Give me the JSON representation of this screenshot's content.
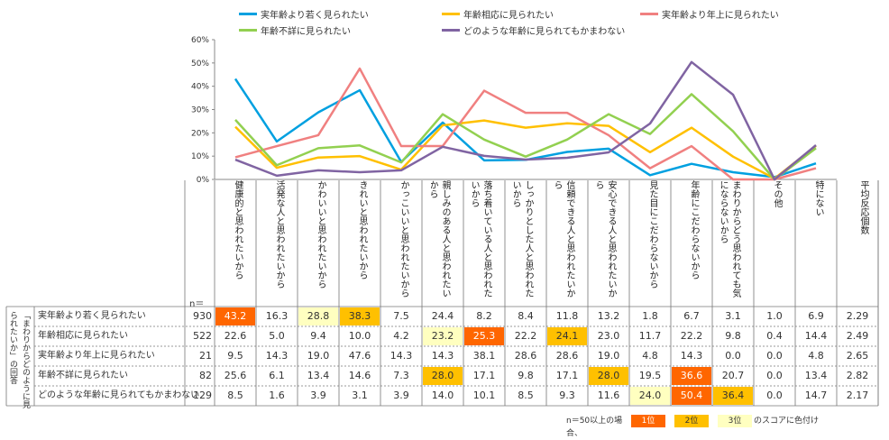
{
  "legend": [
    {
      "name": "実年齢より若く見られたい",
      "color": "#00a0e0"
    },
    {
      "name": "年齢相応に見られたい",
      "color": "#ffc000"
    },
    {
      "name": "実年齢より年上に見られたい",
      "color": "#f08080"
    },
    {
      "name": "年齢不詳に見られたい",
      "color": "#92d050"
    },
    {
      "name": "どのような年齢に見られてもかまわない",
      "color": "#8064a2"
    }
  ],
  "chart_data": {
    "type": "line",
    "ylim": [
      0,
      60
    ],
    "yticks": [
      "0%",
      "10%",
      "20%",
      "30%",
      "40%",
      "50%",
      "60%"
    ],
    "categories": [
      "健康的と思われたいから",
      "活発な人と思われたいから",
      "かわいいと思われたいから",
      "きれいと思われたいから",
      "かっこいいと思われたいから",
      "親しみのある人と思われたいから",
      "落ち着いている人と思われたいから",
      "しっかりとした人と思われたいから",
      "信頼できる人と思われたいから",
      "安心できる人と思われたいから",
      "見た目にこだわらないから",
      "年齢にこだわらないから",
      "まわりからどう思われても気にならないから",
      "その他",
      "特にない"
    ],
    "series": [
      {
        "name": "実年齢より若く見られたい",
        "values": [
          43.2,
          16.3,
          28.8,
          38.3,
          7.5,
          24.4,
          8.2,
          8.4,
          11.8,
          13.2,
          1.8,
          6.7,
          3.1,
          1.0,
          6.9
        ]
      },
      {
        "name": "年齢相応に見られたい",
        "values": [
          22.6,
          5.0,
          9.4,
          10.0,
          4.2,
          23.2,
          25.3,
          22.2,
          24.1,
          23.0,
          11.7,
          22.2,
          9.8,
          0.4,
          14.4
        ]
      },
      {
        "name": "実年齢より年上に見られたい",
        "values": [
          9.5,
          14.3,
          19.0,
          47.6,
          14.3,
          14.3,
          38.1,
          28.6,
          28.6,
          19.0,
          4.8,
          14.3,
          0.0,
          0.0,
          4.8
        ]
      },
      {
        "name": "年齢不詳に見られたい",
        "values": [
          25.6,
          6.1,
          13.4,
          14.6,
          7.3,
          28.0,
          17.1,
          9.8,
          17.1,
          28.0,
          19.5,
          36.6,
          20.7,
          0.0,
          13.4
        ]
      },
      {
        "name": "どのような年齢に見られてもかまわない",
        "values": [
          8.5,
          1.6,
          3.9,
          3.1,
          3.9,
          14.0,
          10.1,
          8.5,
          9.3,
          11.6,
          24.0,
          50.4,
          36.4,
          0.0,
          14.7
        ]
      }
    ]
  },
  "table": {
    "n_label": "n＝",
    "avg_header": "平均反応個数",
    "side_label": "「まわりからどのように見られたいか」の回答",
    "rows": [
      {
        "label": "実年齢より若く見られたい",
        "n": "930",
        "values": [
          "43.2",
          "16.3",
          "28.8",
          "38.3",
          "7.5",
          "24.4",
          "8.2",
          "8.4",
          "11.8",
          "13.2",
          "1.8",
          "6.7",
          "3.1",
          "1.0",
          "6.9"
        ],
        "avg": "2.29",
        "ranks": [
          1,
          0,
          3,
          2,
          0,
          0,
          0,
          0,
          0,
          0,
          0,
          0,
          0,
          0,
          0
        ]
      },
      {
        "label": "年齢相応に見られたい",
        "n": "522",
        "values": [
          "22.6",
          "5.0",
          "9.4",
          "10.0",
          "4.2",
          "23.2",
          "25.3",
          "22.2",
          "24.1",
          "23.0",
          "11.7",
          "22.2",
          "9.8",
          "0.4",
          "14.4"
        ],
        "avg": "2.49",
        "ranks": [
          0,
          0,
          0,
          0,
          0,
          3,
          1,
          0,
          2,
          0,
          0,
          0,
          0,
          0,
          0
        ]
      },
      {
        "label": "実年齢より年上に見られたい",
        "n": "21",
        "values": [
          "9.5",
          "14.3",
          "19.0",
          "47.6",
          "14.3",
          "14.3",
          "38.1",
          "28.6",
          "28.6",
          "19.0",
          "4.8",
          "14.3",
          "0.0",
          "0.0",
          "4.8"
        ],
        "avg": "2.65",
        "ranks": [
          0,
          0,
          0,
          0,
          0,
          0,
          0,
          0,
          0,
          0,
          0,
          0,
          0,
          0,
          0
        ]
      },
      {
        "label": "年齢不詳に見られたい",
        "n": "82",
        "values": [
          "25.6",
          "6.1",
          "13.4",
          "14.6",
          "7.3",
          "28.0",
          "17.1",
          "9.8",
          "17.1",
          "28.0",
          "19.5",
          "36.6",
          "20.7",
          "0.0",
          "13.4"
        ],
        "avg": "2.82",
        "ranks": [
          0,
          0,
          0,
          0,
          0,
          2,
          0,
          0,
          0,
          2,
          0,
          1,
          0,
          0,
          0
        ]
      },
      {
        "label": "どのような年齢に見られてもかまわない",
        "n": "129",
        "values": [
          "8.5",
          "1.6",
          "3.9",
          "3.1",
          "3.9",
          "14.0",
          "10.1",
          "8.5",
          "9.3",
          "11.6",
          "24.0",
          "50.4",
          "36.4",
          "0.0",
          "14.7"
        ],
        "avg": "2.17",
        "ranks": [
          0,
          0,
          0,
          0,
          0,
          0,
          0,
          0,
          0,
          0,
          3,
          1,
          2,
          0,
          0
        ]
      }
    ]
  },
  "rank_colors": {
    "1": "#ff6600",
    "2": "#ffc000",
    "3": "#ffffc0"
  },
  "footnote": {
    "prefix": "n＝50以上の場合、",
    "rank1": "1位",
    "rank2": "2位",
    "rank3": "3位",
    "suffix": "のスコアに色付け"
  }
}
